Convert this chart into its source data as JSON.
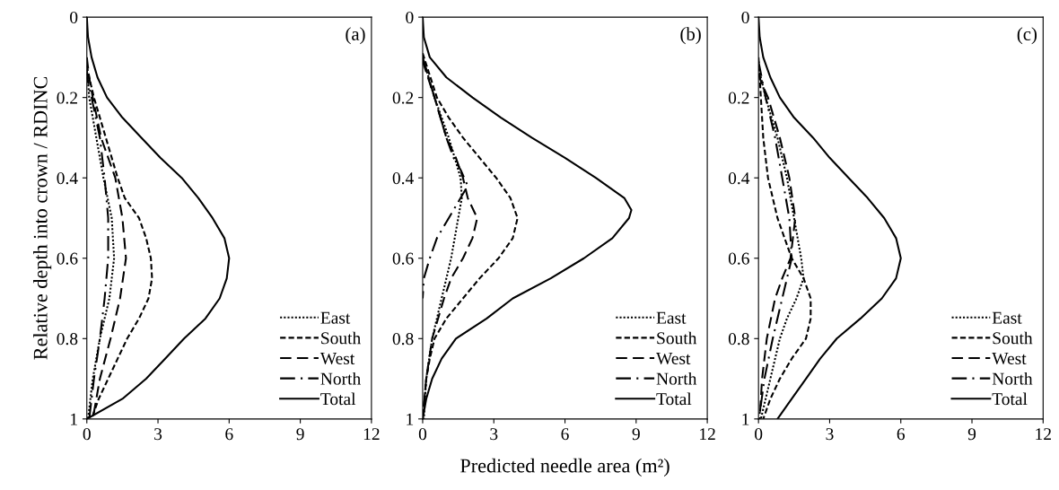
{
  "chart_data": [
    {
      "type": "line",
      "ylabel": "Relative depth into crown / RDINC",
      "annotations": [
        "(a)"
      ],
      "xlim": [
        0,
        12
      ],
      "xticks": [
        0,
        3,
        6,
        9,
        12
      ],
      "ylim": [
        1,
        0
      ],
      "yticks": [
        0,
        0.2,
        0.4,
        0.6,
        0.8,
        1
      ],
      "legend": "bottom right",
      "grid": false,
      "series": [
        {
          "name": "East",
          "color": "#000000",
          "line_style": "dotted",
          "x": [
            0,
            0.05,
            0.1,
            0.4,
            0.7,
            1.05,
            1.15,
            0.95,
            0.55,
            0.25,
            0.05
          ],
          "values": [
            0.14,
            0.16,
            0.2,
            0.3,
            0.4,
            0.5,
            0.6,
            0.7,
            0.8,
            0.9,
            1
          ]
        },
        {
          "name": "South",
          "color": "#000000",
          "line_style": "dashed",
          "x": [
            0,
            0.1,
            0.3,
            0.8,
            1.3,
            1.6,
            2.2,
            2.5,
            2.7,
            2.75,
            2.6,
            2.2,
            1.7,
            1.3,
            0.9,
            0.5,
            0.2
          ],
          "values": [
            0.12,
            0.15,
            0.2,
            0.3,
            0.4,
            0.45,
            0.5,
            0.55,
            0.6,
            0.65,
            0.7,
            0.75,
            0.8,
            0.85,
            0.9,
            0.95,
            1
          ]
        },
        {
          "name": "West",
          "color": "#000000",
          "line_style": "longdash",
          "x": [
            0,
            0.1,
            0.25,
            0.6,
            1.2,
            1.5,
            1.65,
            1.4,
            1.0,
            0.55,
            0.25
          ],
          "values": [
            0.1,
            0.15,
            0.2,
            0.3,
            0.4,
            0.5,
            0.6,
            0.7,
            0.8,
            0.9,
            1
          ]
        },
        {
          "name": "North",
          "color": "#000000",
          "line_style": "dashdot",
          "x": [
            0,
            0.05,
            0.2,
            0.55,
            0.75,
            0.9,
            0.9,
            0.75,
            0.55,
            0.3,
            0.1
          ],
          "values": [
            0.13,
            0.16,
            0.2,
            0.3,
            0.4,
            0.5,
            0.6,
            0.7,
            0.8,
            0.9,
            1
          ]
        },
        {
          "name": "Total",
          "color": "#000000",
          "line_style": "solid",
          "x": [
            0,
            0.05,
            0.2,
            0.45,
            0.85,
            1.5,
            2.3,
            3.1,
            4.0,
            4.7,
            5.3,
            5.8,
            6.0,
            5.9,
            5.6,
            5.0,
            4.1,
            3.3,
            2.5,
            1.5,
            0
          ],
          "values": [
            0,
            0.05,
            0.1,
            0.15,
            0.2,
            0.25,
            0.3,
            0.35,
            0.4,
            0.45,
            0.5,
            0.55,
            0.6,
            0.65,
            0.7,
            0.75,
            0.8,
            0.85,
            0.9,
            0.95,
            1
          ]
        }
      ]
    },
    {
      "type": "line",
      "xlabel": "Predicted needle area (m²)",
      "annotations": [
        "(b)"
      ],
      "xlim": [
        0,
        12
      ],
      "xticks": [
        0,
        3,
        6,
        9,
        12
      ],
      "ylim": [
        1,
        0
      ],
      "yticks": [
        0,
        0.2,
        0.4,
        0.6,
        0.8,
        1
      ],
      "legend": "bottom right",
      "grid": false,
      "series": [
        {
          "name": "East",
          "color": "#000000",
          "line_style": "dotted",
          "x": [
            0,
            0.5,
            1.1,
            1.6,
            1.65,
            1.5,
            1.2,
            0.8,
            0.4,
            0.15,
            0.05
          ],
          "values": [
            0.1,
            0.2,
            0.3,
            0.4,
            0.45,
            0.5,
            0.6,
            0.7,
            0.8,
            0.9,
            1
          ]
        },
        {
          "name": "South",
          "color": "#000000",
          "line_style": "dashed",
          "x": [
            0,
            0.6,
            1.1,
            1.7,
            2.4,
            3.1,
            3.7,
            4.0,
            3.8,
            3.2,
            2.4,
            1.7,
            1.0,
            0.5,
            0.3,
            0.15,
            0
          ],
          "values": [
            0.09,
            0.2,
            0.25,
            0.3,
            0.35,
            0.4,
            0.45,
            0.5,
            0.55,
            0.6,
            0.65,
            0.7,
            0.75,
            0.8,
            0.85,
            0.9,
            1
          ]
        },
        {
          "name": "West",
          "color": "#000000",
          "line_style": "longdash",
          "x": [
            0,
            0.5,
            1.0,
            1.4,
            1.7,
            1.9,
            2.3,
            2.1,
            1.7,
            1.2,
            0.9,
            0.4,
            0.15,
            0
          ],
          "values": [
            0.11,
            0.2,
            0.3,
            0.35,
            0.4,
            0.45,
            0.5,
            0.55,
            0.6,
            0.65,
            0.7,
            0.8,
            0.9,
            1
          ]
        },
        {
          "name": "North",
          "color": "#000000",
          "line_style": "dashdot",
          "x": [
            0,
            0.5,
            1.0,
            1.3,
            1.6,
            1.9,
            1.6,
            1.1,
            0.6,
            0.3,
            0.05,
            0
          ],
          "values": [
            0.1,
            0.2,
            0.3,
            0.35,
            0.38,
            0.42,
            0.45,
            0.5,
            0.55,
            0.6,
            0.65,
            0.7
          ]
        },
        {
          "name": "Total",
          "color": "#000000",
          "line_style": "solid",
          "x": [
            0,
            0.05,
            0.3,
            1.0,
            2.1,
            3.3,
            4.6,
            6.0,
            7.3,
            8.5,
            8.8,
            8.7,
            8.0,
            6.8,
            5.4,
            3.8,
            2.7,
            1.4,
            0.8,
            0.4,
            0.15,
            0
          ],
          "values": [
            0,
            0.05,
            0.1,
            0.15,
            0.2,
            0.25,
            0.3,
            0.35,
            0.4,
            0.45,
            0.48,
            0.5,
            0.55,
            0.6,
            0.65,
            0.7,
            0.75,
            0.8,
            0.85,
            0.9,
            0.95,
            1
          ]
        }
      ]
    },
    {
      "type": "line",
      "annotations": [
        "(c)"
      ],
      "xlim": [
        0,
        12
      ],
      "xticks": [
        0,
        3,
        6,
        9,
        12
      ],
      "ylim": [
        1,
        0
      ],
      "yticks": [
        0,
        0.2,
        0.4,
        0.6,
        0.8,
        1
      ],
      "legend": "bottom right",
      "grid": false,
      "series": [
        {
          "name": "East",
          "color": "#000000",
          "line_style": "dotted",
          "x": [
            0,
            0.1,
            0.3,
            0.8,
            1.2,
            1.5,
            1.8,
            1.9,
            1.6,
            1.2,
            0.9,
            0.5,
            0.1
          ],
          "values": [
            0.12,
            0.15,
            0.2,
            0.3,
            0.4,
            0.5,
            0.6,
            0.65,
            0.7,
            0.75,
            0.8,
            0.9,
            1
          ]
        },
        {
          "name": "South",
          "color": "#000000",
          "line_style": "dashed",
          "x": [
            0,
            0.05,
            0.1,
            0.2,
            0.4,
            0.8,
            1.4,
            1.9,
            2.2,
            2.2,
            2.0,
            1.4,
            0.9,
            0.5,
            0.2
          ],
          "values": [
            0.1,
            0.15,
            0.2,
            0.3,
            0.4,
            0.5,
            0.6,
            0.65,
            0.7,
            0.75,
            0.8,
            0.85,
            0.9,
            0.95,
            1
          ]
        },
        {
          "name": "West",
          "color": "#000000",
          "line_style": "longdash",
          "x": [
            0,
            0.1,
            0.4,
            0.9,
            1.3,
            1.55,
            1.35,
            1.0,
            0.7,
            0.35,
            0.15,
            0.05
          ],
          "values": [
            0.14,
            0.16,
            0.2,
            0.3,
            0.4,
            0.5,
            0.6,
            0.65,
            0.7,
            0.8,
            0.9,
            1
          ]
        },
        {
          "name": "North",
          "color": "#000000",
          "line_style": "dashdot",
          "x": [
            0,
            0.3,
            0.7,
            1.0,
            1.3,
            1.4,
            1.0,
            0.6,
            0.25,
            0.02
          ],
          "values": [
            0.11,
            0.2,
            0.3,
            0.4,
            0.5,
            0.6,
            0.7,
            0.8,
            0.9,
            1
          ]
        },
        {
          "name": "Total",
          "color": "#000000",
          "line_style": "solid",
          "x": [
            0,
            0.05,
            0.2,
            0.5,
            0.9,
            1.5,
            2.3,
            3.0,
            3.8,
            4.6,
            5.3,
            5.8,
            6.0,
            5.8,
            5.2,
            4.3,
            3.3,
            2.6,
            2.0,
            1.4,
            0.8
          ],
          "values": [
            0,
            0.05,
            0.1,
            0.15,
            0.2,
            0.25,
            0.3,
            0.35,
            0.4,
            0.45,
            0.5,
            0.55,
            0.6,
            0.65,
            0.7,
            0.75,
            0.8,
            0.85,
            0.9,
            0.95,
            1
          ]
        }
      ]
    }
  ]
}
